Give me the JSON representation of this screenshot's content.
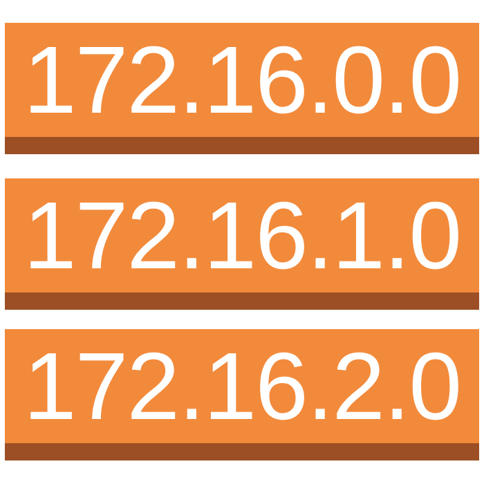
{
  "colors": {
    "tile_fill": "#f28a3b",
    "tile_shadow": "#9c4f24",
    "text": "#ffffff",
    "background": "#ffffff"
  },
  "addresses": [
    {
      "label": "172.16.0.0"
    },
    {
      "label": "172.16.1.0"
    },
    {
      "label": "172.16.2.0"
    }
  ]
}
